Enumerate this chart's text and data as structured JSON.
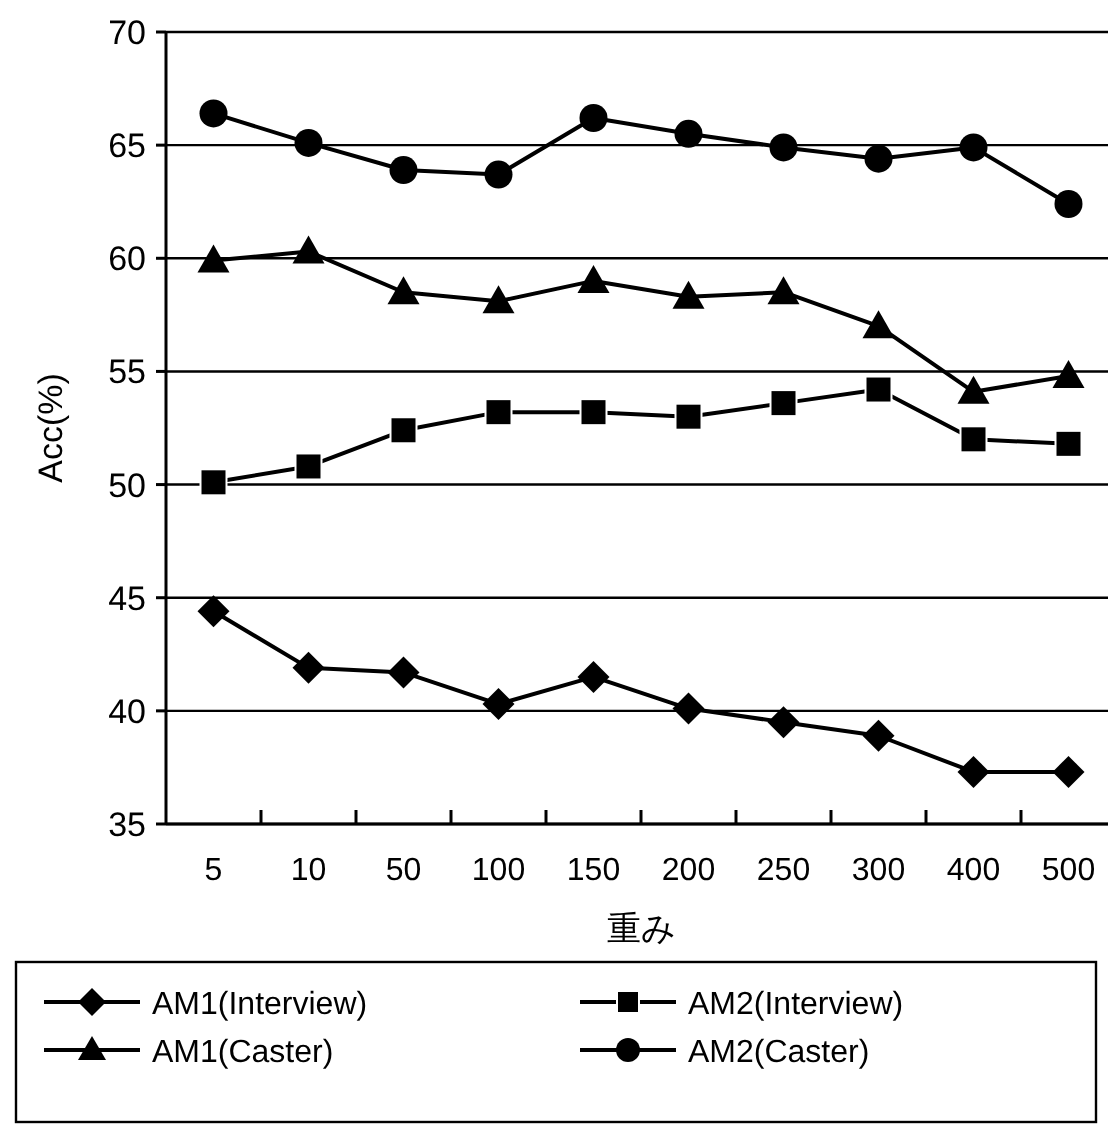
{
  "chart_data": {
    "type": "line",
    "xlabel": "重み",
    "ylabel": "Acc(%)",
    "categories": [
      "5",
      "10",
      "50",
      "100",
      "150",
      "200",
      "250",
      "300",
      "400",
      "500"
    ],
    "ylim": [
      35,
      70
    ],
    "yticks": [
      35,
      40,
      45,
      50,
      55,
      60,
      65,
      70
    ],
    "grid": "y",
    "legend": "bottom",
    "series": [
      {
        "name": "AM1(Interview)",
        "color": "#000000",
        "marker": "diamond",
        "values": [
          44.4,
          41.9,
          41.7,
          40.3,
          41.5,
          40.1,
          39.5,
          38.9,
          37.3,
          37.3
        ]
      },
      {
        "name": "AM2(Interview)",
        "color": "#000000",
        "marker": "square",
        "values": [
          50.1,
          50.8,
          52.4,
          53.2,
          53.2,
          53.0,
          53.6,
          54.2,
          52.0,
          51.8
        ]
      },
      {
        "name": "AM1(Caster)",
        "color": "#000000",
        "marker": "triangle",
        "values": [
          59.9,
          60.3,
          58.5,
          58.1,
          59.0,
          58.3,
          58.5,
          57.0,
          54.1,
          54.8
        ]
      },
      {
        "name": "AM2(Caster)",
        "color": "#000000",
        "marker": "circle",
        "values": [
          66.4,
          65.1,
          63.9,
          63.7,
          66.2,
          65.5,
          64.9,
          64.4,
          64.9,
          62.4
        ]
      }
    ]
  }
}
